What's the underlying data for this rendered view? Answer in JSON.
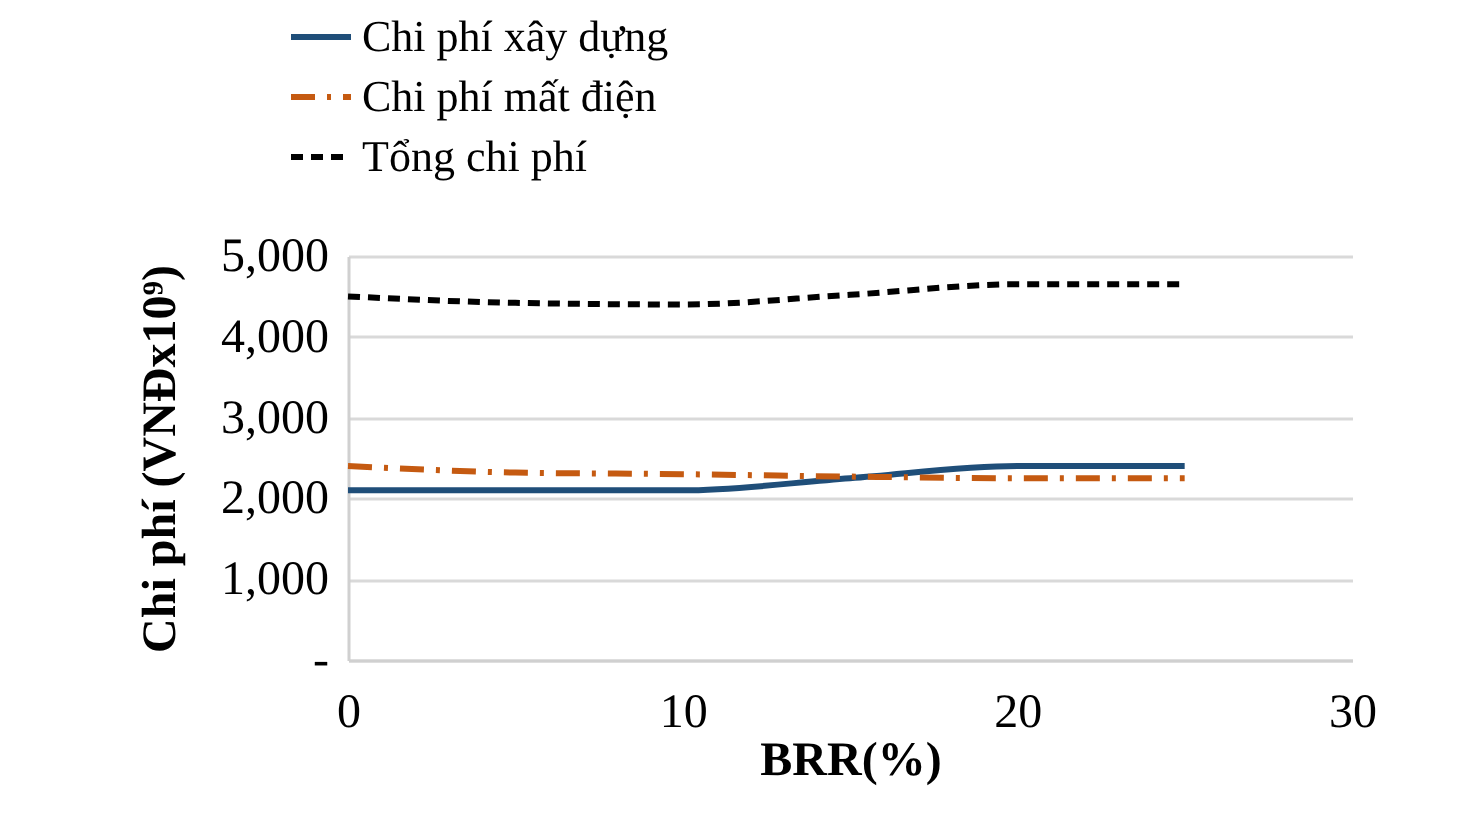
{
  "chart_data": {
    "type": "line",
    "xlabel": "BRR(%)",
    "ylabel": "Chi phí (VNĐx10⁹)",
    "x": [
      0,
      5,
      10,
      15,
      20,
      25
    ],
    "series": [
      {
        "name": "Chi phí xây dựng",
        "color": "#1f4e79",
        "line_style": "solid",
        "values": [
          2100,
          2100,
          2100,
          2250,
          2400,
          2400
        ]
      },
      {
        "name": "Chi phí mất điện",
        "color": "#c55a11",
        "line_style": "dashdot",
        "values": [
          2400,
          2320,
          2300,
          2270,
          2250,
          2250
        ]
      },
      {
        "name": "Tổng chi phí",
        "color": "#000000",
        "line_style": "dashed",
        "values": [
          4500,
          4420,
          4400,
          4520,
          4650,
          4650
        ]
      }
    ],
    "xlim": [
      0,
      30
    ],
    "xticks": [
      0,
      10,
      20,
      30
    ],
    "ylim": [
      0,
      5000
    ],
    "yticks": [
      {
        "value": 0,
        "label": "-"
      },
      {
        "value": 1000,
        "label": "1,000"
      },
      {
        "value": 2000,
        "label": "2,000"
      },
      {
        "value": 3000,
        "label": "3,000"
      },
      {
        "value": 4000,
        "label": "4,000"
      },
      {
        "value": 5000,
        "label": "5,000"
      }
    ],
    "grid": "y",
    "legend": "top left",
    "marker": "none"
  }
}
